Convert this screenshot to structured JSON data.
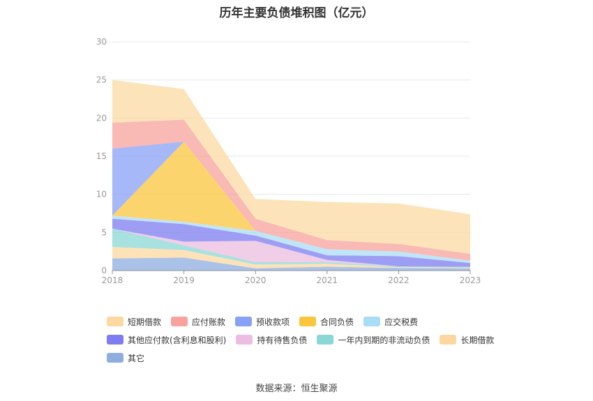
{
  "title": "历年主要负债堆积图（亿元）",
  "source": "数据来源：恒生聚源",
  "chart_data": {
    "type": "area",
    "stacked": true,
    "title": "历年主要负债堆积图（亿元）",
    "xlabel": "",
    "ylabel": "",
    "x": [
      "2018",
      "2019",
      "2020",
      "2021",
      "2022",
      "2023"
    ],
    "ylim": [
      0,
      30
    ],
    "yticks": [
      0,
      5,
      10,
      15,
      20,
      25,
      30
    ],
    "grid": true,
    "legend_position": "bottom",
    "series": [
      {
        "name": "其它",
        "color": "#8eaee0",
        "values": [
          1.6,
          1.7,
          0.3,
          0.5,
          0.35,
          0.3
        ]
      },
      {
        "name": "长期借款",
        "color": "#fcd8a0",
        "values": [
          1.5,
          1.0,
          0.5,
          0.4,
          0.1,
          0.1
        ]
      },
      {
        "name": "一年内到期的非流动负债",
        "color": "#8ad7d6",
        "values": [
          2.4,
          0.6,
          0.3,
          0.2,
          0.1,
          0.1
        ]
      },
      {
        "name": "持有待售负债",
        "color": "#ebbde0",
        "values": [
          0.0,
          0.5,
          2.8,
          0.3,
          0.0,
          0.0
        ]
      },
      {
        "name": "其他应付款(含利息和股利)",
        "color": "#7e7cf0",
        "values": [
          1.3,
          2.3,
          0.7,
          0.6,
          1.35,
          0.5
        ]
      },
      {
        "name": "应交税费",
        "color": "#a9dcf7",
        "values": [
          0.4,
          0.3,
          0.6,
          0.8,
          0.6,
          0.3
        ]
      },
      {
        "name": "合同负债",
        "color": "#fbc63c",
        "values": [
          0.0,
          10.5,
          0.0,
          0.0,
          0.0,
          0.0
        ]
      },
      {
        "name": "预收款项",
        "color": "#88a0f5",
        "values": [
          8.8,
          0.0,
          0.0,
          0.0,
          0.0,
          0.0
        ]
      },
      {
        "name": "应付账款",
        "color": "#f7a29c",
        "values": [
          3.4,
          2.9,
          1.6,
          1.2,
          1.0,
          0.9
        ]
      },
      {
        "name": "短期借款",
        "color": "#fcd9a1",
        "values": [
          5.6,
          4.0,
          2.6,
          5.0,
          5.3,
          5.2
        ]
      }
    ]
  },
  "legend": {
    "rows": [
      [
        {
          "label": "短期借款",
          "color": "#fcd9a1"
        },
        {
          "label": "应付账款",
          "color": "#f7a29c"
        },
        {
          "label": "预收款项",
          "color": "#88a0f5"
        },
        {
          "label": "合同负债",
          "color": "#fbc63c"
        },
        {
          "label": "应交税费",
          "color": "#a9dcf7"
        }
      ],
      [
        {
          "label": "其他应付款(含利息和股利)",
          "color": "#7e7cf0"
        },
        {
          "label": "持有待售负债",
          "color": "#ebbde0"
        },
        {
          "label": "一年内到期的非流动负债",
          "color": "#8ad7d6"
        },
        {
          "label": "长期借款",
          "color": "#fcd8a0"
        }
      ],
      [
        {
          "label": "其它",
          "color": "#8eaee0"
        }
      ]
    ]
  }
}
